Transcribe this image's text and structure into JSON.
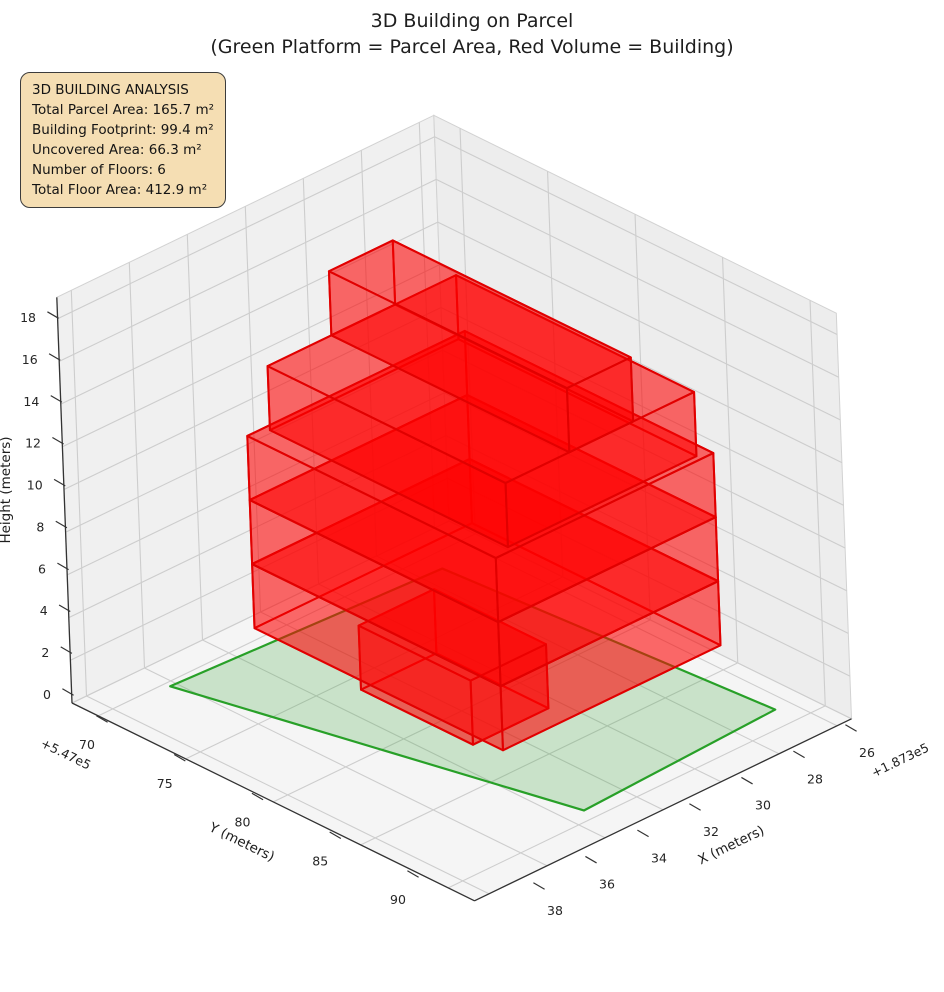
{
  "title": {
    "line1": "3D Building on Parcel",
    "line2": "(Green Platform = Parcel Area, Red Volume = Building)"
  },
  "info_box": {
    "title": "3D BUILDING ANALYSIS",
    "lines": [
      "Total Parcel Area: 165.7 m²",
      "Building Footprint: 99.4 m²",
      "Uncovered Area: 66.3 m²",
      "Number of Floors: 6",
      "Total Floor Area: 412.9 m²"
    ]
  },
  "chart_data": {
    "type": "3d-building",
    "title": "3D Building on Parcel",
    "subtitle": "(Green Platform = Parcel Area, Red Volume = Building)",
    "axes": {
      "x": {
        "label": "X (meters)",
        "offset_text": "+1.873e5",
        "ticks": [
          26,
          28,
          30,
          32,
          34,
          36,
          38
        ],
        "lim": [
          25.5,
          38.5
        ]
      },
      "y": {
        "label": "Y (meters)",
        "offset_text": "+5.47e5",
        "ticks": [
          70,
          75,
          80,
          85,
          90
        ],
        "lim": [
          68.5,
          91.5
        ]
      },
      "z": {
        "label": "Height (meters)",
        "ticks": [
          0,
          2,
          4,
          6,
          8,
          10,
          12,
          14,
          16,
          18
        ],
        "lim": [
          0,
          19
        ]
      }
    },
    "parcel": {
      "polygon_xy": [
        [
          36.2,
          70.3
        ],
        [
          33.4,
          89.3
        ],
        [
          26.5,
          88.8
        ],
        [
          27.3,
          71.1
        ]
      ],
      "z": 0,
      "area_m2": 165.7,
      "fill": "#2ca02c",
      "edge": "#28a028",
      "fill_alpha": 0.22
    },
    "building": {
      "color": "#ff0000",
      "edge": "#e00000",
      "fill_alpha": 0.35,
      "num_floors": 6,
      "floor_height_m": 3,
      "footprint_m2": 99.4,
      "total_floor_area_m2": 412.9,
      "floors": [
        {
          "level": 1,
          "x": [
            30.4,
            33.0
          ],
          "y": [
            75.9,
            82.3
          ],
          "z": [
            0,
            3
          ]
        },
        {
          "level": 2,
          "x": [
            27.4,
            34.9
          ],
          "y": [
            73.1,
            87.3
          ],
          "z": [
            3,
            6
          ]
        },
        {
          "level": 3,
          "x": [
            27.4,
            34.9
          ],
          "y": [
            73.1,
            87.3
          ],
          "z": [
            6,
            9
          ]
        },
        {
          "level": 4,
          "x": [
            27.4,
            34.9
          ],
          "y": [
            73.1,
            87.3
          ],
          "z": [
            9,
            12
          ]
        },
        {
          "level": 5,
          "x": [
            27.8,
            34.3
          ],
          "y": [
            73.4,
            87.0
          ],
          "z": [
            12,
            15
          ]
        },
        {
          "level": 6,
          "x": [
            29.9,
            32.1
          ],
          "y": [
            73.4,
            87.0
          ],
          "z": [
            15,
            18
          ]
        }
      ]
    },
    "stats": {
      "total_parcel_area_m2": 165.7,
      "building_footprint_m2": 99.4,
      "uncovered_area_m2": 66.3,
      "num_floors": 6,
      "total_floor_area_m2": 412.9
    }
  }
}
